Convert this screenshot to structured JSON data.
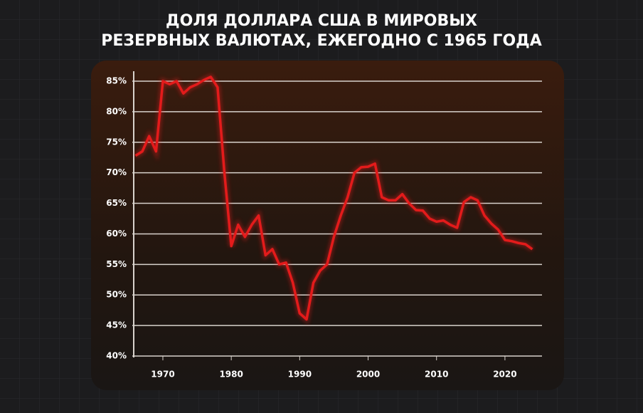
{
  "chart_data": {
    "type": "line",
    "title_lines": [
      "ДОЛЯ ДОЛЛАРА США В МИРОВЫХ",
      "РЕЗЕРВНЫХ ВАЛЮТАХ, ЕЖЕГОДНО С 1965 ГОДА"
    ],
    "x": [
      1966,
      1967,
      1968,
      1969,
      1970,
      1971,
      1972,
      1973,
      1974,
      1975,
      1976,
      1977,
      1978,
      1979,
      1980,
      1981,
      1982,
      1983,
      1984,
      1985,
      1986,
      1987,
      1988,
      1989,
      1990,
      1991,
      1992,
      1993,
      1994,
      1995,
      1996,
      1997,
      1998,
      1999,
      2000,
      2001,
      2002,
      2003,
      2004,
      2005,
      2006,
      2007,
      2008,
      2009,
      2010,
      2011,
      2012,
      2013,
      2014,
      2015,
      2016,
      2017,
      2018,
      2019,
      2020,
      2021,
      2022,
      2023,
      2024
    ],
    "series": [
      {
        "color": "#e31b1b",
        "values": [
          72.8,
          73.5,
          76,
          73.5,
          85,
          84.5,
          85,
          83,
          84,
          84.5,
          85.2,
          85.7,
          84,
          70,
          58,
          61.5,
          59.5,
          61.5,
          63,
          56.5,
          57.5,
          55,
          55.3,
          52,
          47,
          46,
          52,
          54,
          55,
          59.5,
          63,
          66,
          70,
          70.9,
          71,
          71.5,
          66,
          65.5,
          65.5,
          66.5,
          65,
          63.9,
          63.8,
          62.5,
          62,
          62.2,
          61.5,
          61,
          65.2,
          66,
          65.5,
          63,
          61.7,
          60.7,
          59,
          58.8,
          58.5,
          58.3,
          57.5
        ]
      }
    ],
    "xlim": [
      1966,
      2025
    ],
    "xticks": [
      1970,
      1980,
      1990,
      2000,
      2010,
      2020
    ],
    "ylim": [
      40,
      85
    ],
    "yticks": [
      {
        "value": 40,
        "label": "40%"
      },
      {
        "value": 45,
        "label": "45%"
      },
      {
        "value": 50,
        "label": "50%"
      },
      {
        "value": 55,
        "label": "55%"
      },
      {
        "value": 60,
        "label": "60%"
      },
      {
        "value": 65,
        "label": "65%"
      },
      {
        "value": 70,
        "label": "70%"
      },
      {
        "value": 75,
        "label": "75%"
      },
      {
        "value": 80,
        "label": "80%"
      },
      {
        "value": 85,
        "label": "85%"
      }
    ],
    "grid": true
  }
}
